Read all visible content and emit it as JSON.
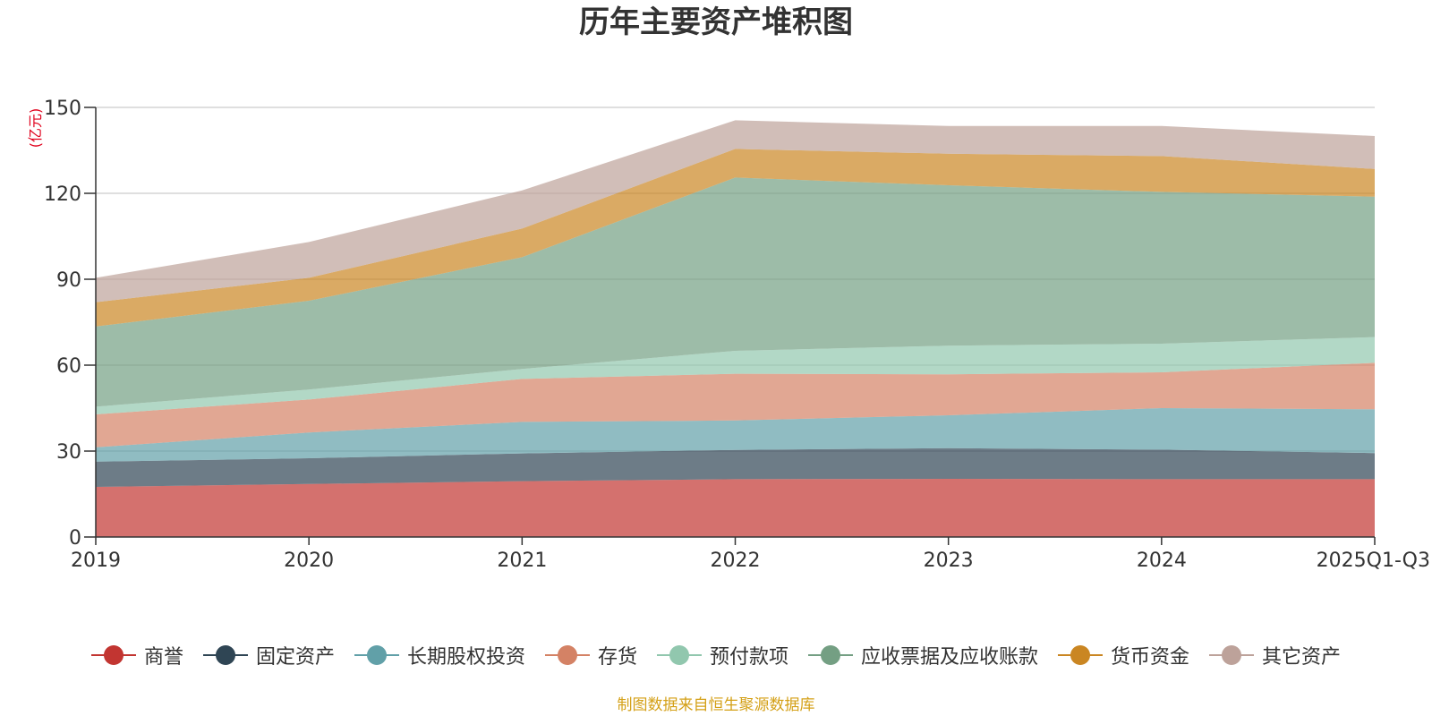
{
  "chart_data": {
    "type": "area",
    "stacked": true,
    "title": "历年主要资产堆积图",
    "ylabel": "(亿元)",
    "xlabel": "",
    "categories": [
      "2019",
      "2020",
      "2021",
      "2022",
      "2023",
      "2024",
      "2025Q1-Q3"
    ],
    "ylim": [
      0,
      150
    ],
    "yticks": [
      0,
      30,
      60,
      90,
      120,
      150
    ],
    "grid": true,
    "legend_position": "bottom",
    "series": [
      {
        "name": "商誉",
        "color": "#c23531",
        "values": [
          17.5,
          18.5,
          19.5,
          20.2,
          20.3,
          20.2,
          20.2
        ]
      },
      {
        "name": "固定资产",
        "color": "#2f4554",
        "values": [
          8.8,
          9.0,
          9.7,
          10.2,
          10.7,
          10.3,
          9.1
        ]
      },
      {
        "name": "长期股权投资",
        "color": "#61a0a8",
        "values": [
          5.0,
          9.0,
          11.0,
          10.3,
          11.5,
          14.5,
          15.3
        ]
      },
      {
        "name": "存货",
        "color": "#d48265",
        "values": [
          11.5,
          11.5,
          15.0,
          16.3,
          14.3,
          12.5,
          16.2
        ]
      },
      {
        "name": "预付款项",
        "color": "#91c7ae",
        "values": [
          2.7,
          3.5,
          3.5,
          8.0,
          10.0,
          10.0,
          9.0
        ]
      },
      {
        "name": "应收票据及应收账款",
        "color": "#749f83",
        "values": [
          28.0,
          31.0,
          39.0,
          60.5,
          56.0,
          53.0,
          49.0
        ]
      },
      {
        "name": "货币资金",
        "color": "#ca8622",
        "values": [
          8.5,
          8.0,
          10.0,
          10.0,
          11.0,
          12.5,
          9.7
        ]
      },
      {
        "name": "其它资产",
        "color": "#bda29a",
        "values": [
          8.5,
          12.5,
          13.3,
          10.0,
          9.7,
          10.5,
          11.5
        ]
      }
    ],
    "footer": "制图数据来自恒生聚源数据库"
  }
}
